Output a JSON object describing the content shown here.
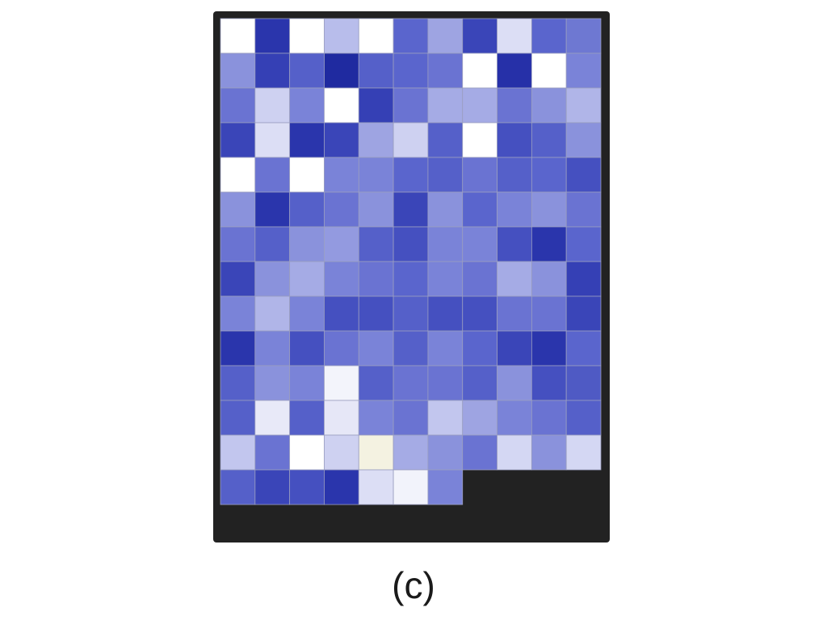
{
  "caption": "(c)",
  "chart_data": {
    "type": "heatmap",
    "title": "",
    "xlabel": "",
    "ylabel": "",
    "n_cols": 11,
    "n_rows": 15,
    "cells": [
      [
        "#ffffff",
        "#2a35ac",
        "#ffffff",
        "#b8bdeb",
        "#ffffff",
        "#5a65cd",
        "#9ea4e2",
        "#3a45b8",
        "#dcdef5",
        "#5a65cd",
        "#6e78d2"
      ],
      [
        "#8a92dc",
        "#3540b5",
        "#5560c9",
        "#1f2aa0",
        "#5560c9",
        "#5a65cd",
        "#6a73d2",
        "#ffffff",
        "#2630a8",
        "#ffffff",
        "#7a83d8"
      ],
      [
        "#6a73d2",
        "#ced1f1",
        "#7a83d8",
        "#ffffff",
        "#3540b5",
        "#6a73d2",
        "#a5abe5",
        "#a5abe5",
        "#6a73d2",
        "#8a92dc",
        "#b0b5e8"
      ],
      [
        "#3a45b8",
        "#dcdef5",
        "#2a35ac",
        "#3a45b8",
        "#9ea4e2",
        "#ced1f1",
        "#5560c9",
        "#ffffff",
        "#4550c0",
        "#5560c9",
        "#8a92dc"
      ],
      [
        "#ffffff",
        "#6a73d2",
        "#ffffff",
        "#7a83d8",
        "#7a83d8",
        "#5a65cd",
        "#5560c9",
        "#6a73d2",
        "#5560c9",
        "#5a65cd",
        "#4550c0"
      ],
      [
        "#8a92dc",
        "#2a35ac",
        "#5560c9",
        "#6a73d2",
        "#8a92dc",
        "#3a45b8",
        "#8a92dc",
        "#5a65cd",
        "#7a83d8",
        "#8a92dc",
        "#6a73d2"
      ],
      [
        "#6a73d2",
        "#5560c9",
        "#8a92dc",
        "#939ae0",
        "#5560c9",
        "#4550c0",
        "#7a83d8",
        "#7a83d8",
        "#4550c0",
        "#2a35ac",
        "#5a65cd"
      ],
      [
        "#3a45b8",
        "#8a92dc",
        "#a5abe5",
        "#7a83d8",
        "#6a73d2",
        "#5a65cd",
        "#7a83d8",
        "#6a73d2",
        "#a5abe5",
        "#8a92dc",
        "#3540b5"
      ],
      [
        "#7a83d8",
        "#b0b5e8",
        "#7a83d8",
        "#4550c0",
        "#4550c0",
        "#5560c9",
        "#4550c0",
        "#4550c0",
        "#6a73d2",
        "#6a73d2",
        "#3a45b8"
      ],
      [
        "#2a35ac",
        "#7a83d8",
        "#4550c0",
        "#6a73d2",
        "#7a83d8",
        "#5560c9",
        "#7a83d8",
        "#5a65cd",
        "#3a45b8",
        "#2a35ac",
        "#5a65cd"
      ],
      [
        "#5560c9",
        "#8a92dc",
        "#7a83d8",
        "#f3f4fb",
        "#5560c9",
        "#6a73d2",
        "#6a73d2",
        "#5560c9",
        "#8a92dc",
        "#4550c0",
        "#4f5ac4"
      ],
      [
        "#5560c9",
        "#e8e9f8",
        "#5560c9",
        "#e6e7f7",
        "#7a83d8",
        "#6a73d2",
        "#c2c6ee",
        "#9ea4e2",
        "#7a83d8",
        "#6a73d2",
        "#5560c9"
      ],
      [
        "#c2c6ee",
        "#6a73d2",
        "#ffffff",
        "#ced1f1",
        "#f4f2e1",
        "#a5abe5",
        "#8a92dc",
        "#6a73d2",
        "#d4d7f3",
        "#8a92dc",
        "#d4d7f3"
      ],
      [
        "#5560c9",
        "#3a45b8",
        "#4550c0",
        "#2a35ac",
        "#dcdef5",
        "#f2f3fb",
        "#7a83d8",
        null,
        null,
        null,
        null
      ],
      [
        null,
        null,
        null,
        null,
        null,
        null,
        null,
        null,
        null,
        null,
        null
      ]
    ]
  }
}
